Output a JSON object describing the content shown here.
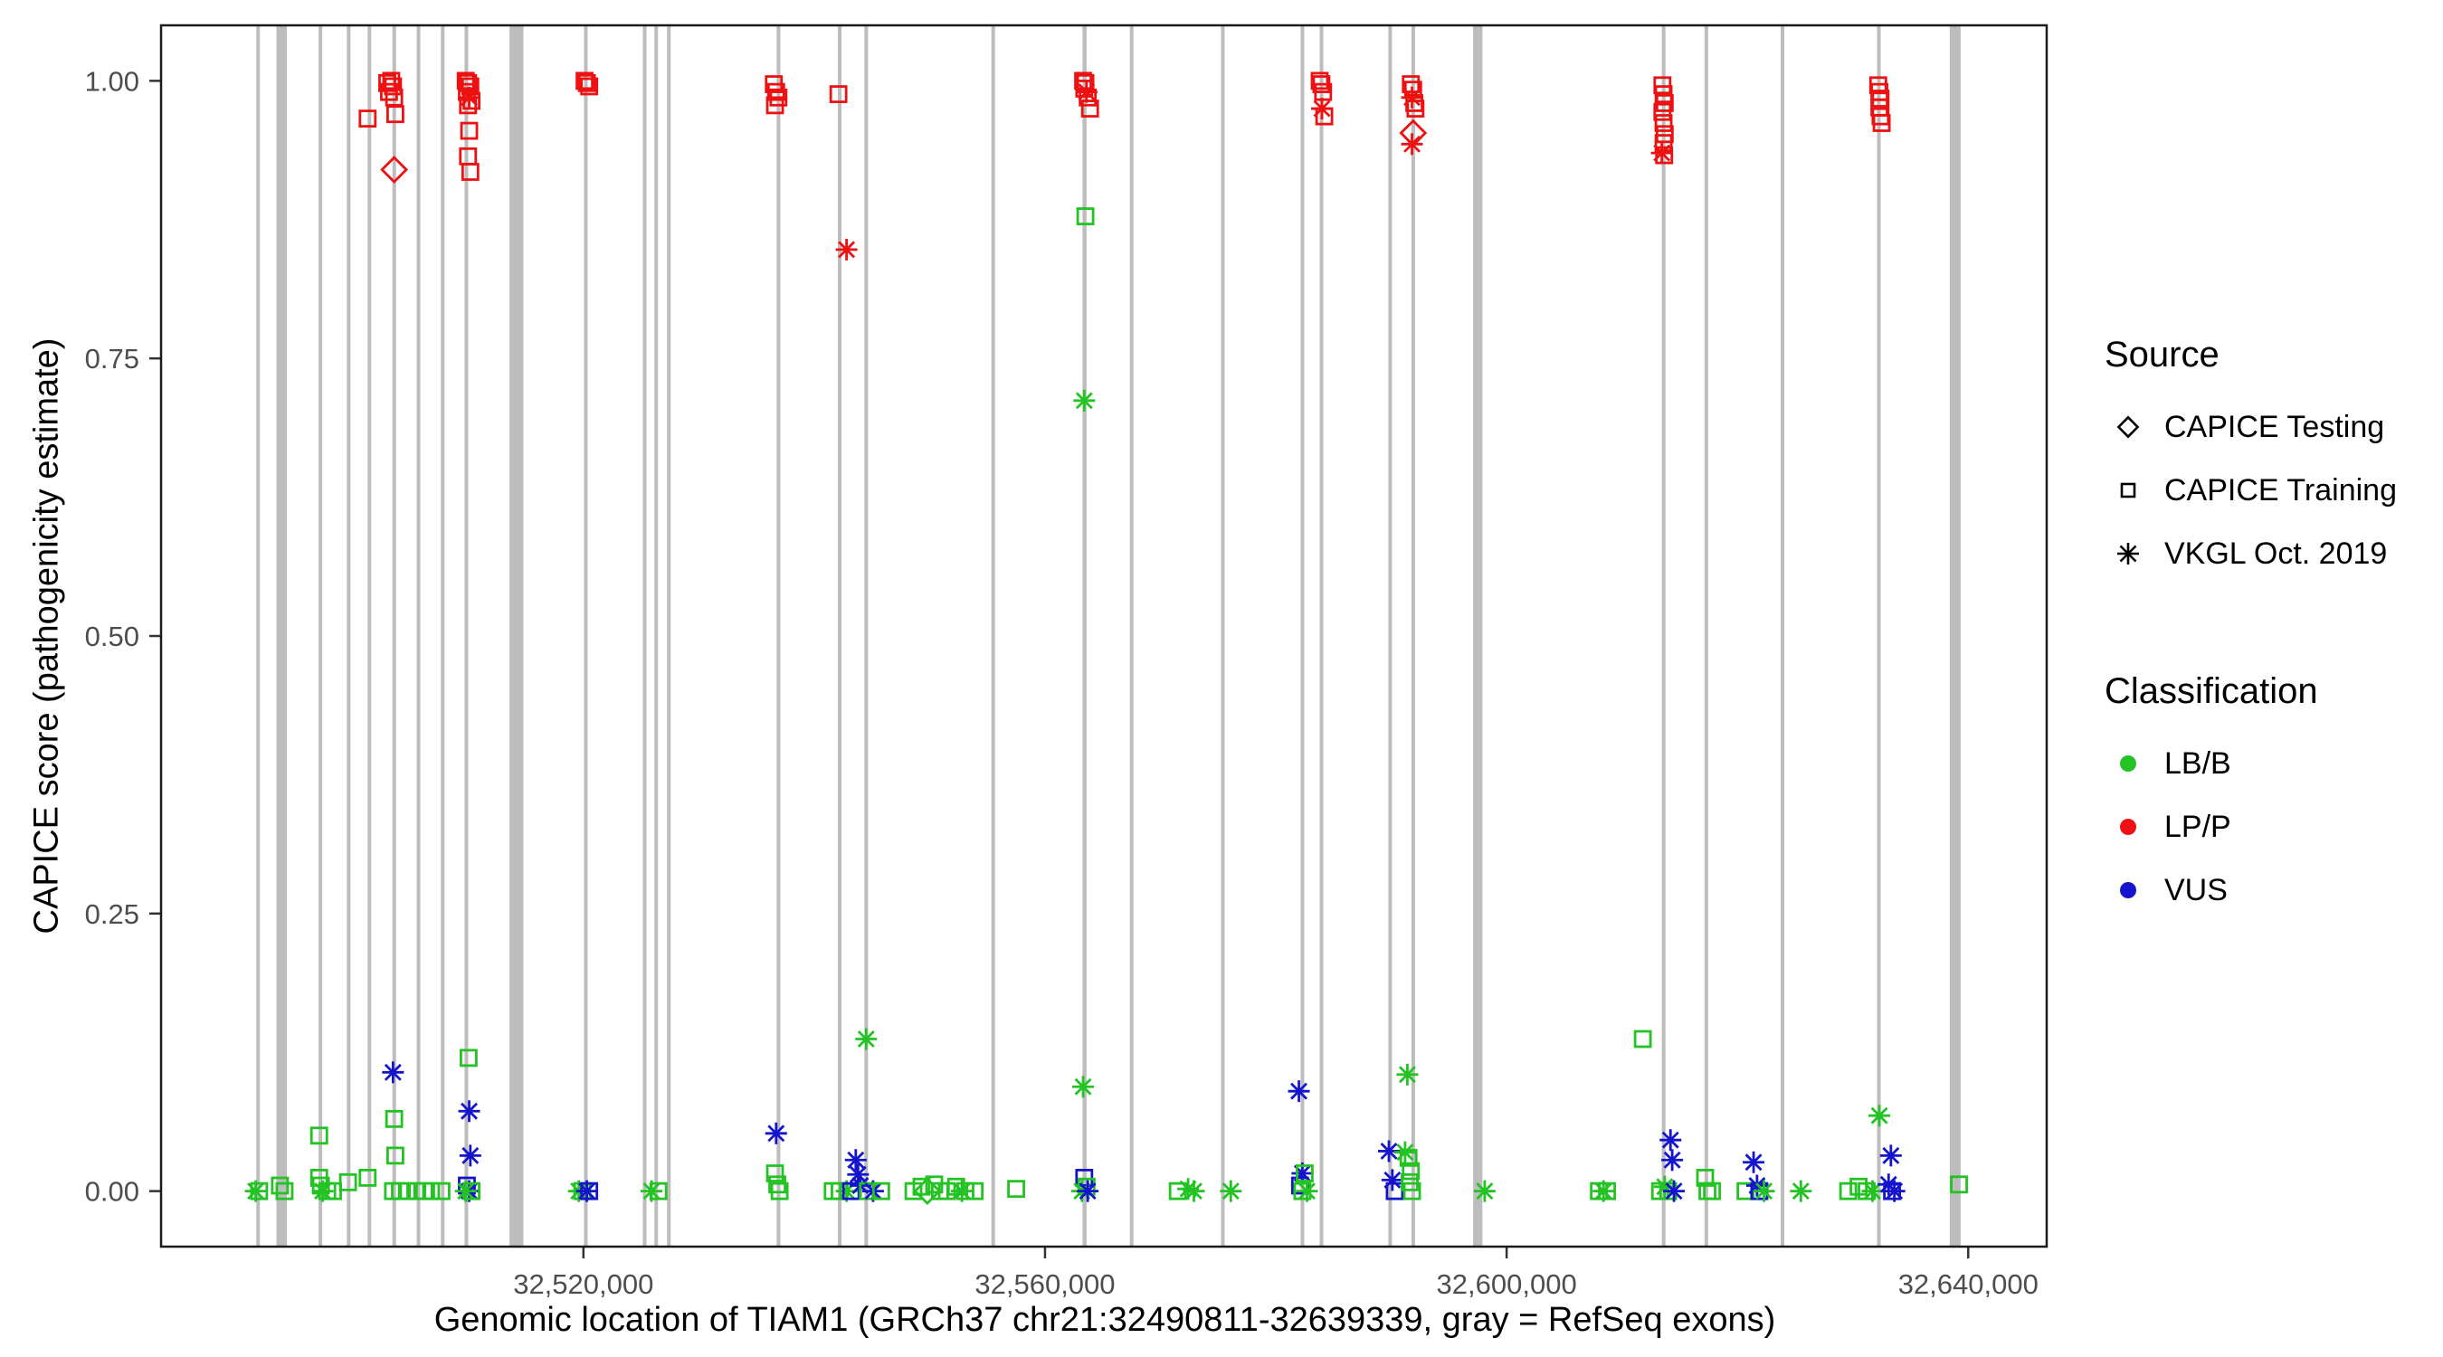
{
  "legend": {
    "source": {
      "title": "Source",
      "items": [
        {
          "label": "CAPICE Testing",
          "shape": "diamond"
        },
        {
          "label": "CAPICE Training",
          "shape": "square"
        },
        {
          "label": "VKGL Oct. 2019",
          "shape": "asterisk"
        }
      ]
    },
    "classification": {
      "title": "Classification",
      "items": [
        {
          "label": "LB/B",
          "color_key": "G"
        },
        {
          "label": "LP/P",
          "color_key": "R"
        },
        {
          "label": "VUS",
          "color_key": "B"
        }
      ]
    }
  },
  "chart_data": {
    "type": "scatter",
    "title": "",
    "xlabel": "Genomic location of TIAM1 (GRCh37 chr21:32490811-32639339, gray = RefSeq exons)",
    "ylabel": "CAPICE score (pathogenicity estimate)",
    "xlim": [
      32483400,
      32646800
    ],
    "ylim": [
      -0.05,
      1.05
    ],
    "x_ticks": [
      32520000,
      32560000,
      32600000,
      32640000
    ],
    "x_tick_labels": [
      "32,520,000",
      "32,560,000",
      "32,600,000",
      "32,640,000"
    ],
    "y_ticks": [
      0,
      0.25,
      0.5,
      0.75,
      1.0
    ],
    "y_tick_labels": [
      "0.00",
      "0.25",
      "0.50",
      "0.75",
      "1.00"
    ],
    "grid": false,
    "legend_position": "right",
    "colors": {
      "G": "#22C322",
      "R": "#EE1111",
      "B": "#1414CC",
      "exon": "#BDBDBD"
    },
    "encoding": {
      "point_format": [
        "x",
        "y",
        "source",
        "classification"
      ],
      "sources": {
        "tr": "CAPICE Training",
        "te": "CAPICE Testing",
        "vk": "VKGL Oct. 2019"
      },
      "classes": {
        "G": "LB/B",
        "R": "LP/P",
        "B": "VUS"
      }
    },
    "exons": [
      [
        32491650,
        32491950
      ],
      [
        32493400,
        32494300
      ],
      [
        32497050,
        32497350
      ],
      [
        32499500,
        32499800
      ],
      [
        32501300,
        32501600
      ],
      [
        32503450,
        32503750
      ],
      [
        32505550,
        32505850
      ],
      [
        32507650,
        32507950
      ],
      [
        32509700,
        32510000
      ],
      [
        32513600,
        32514800
      ],
      [
        32520050,
        32520350
      ],
      [
        32525150,
        32525450
      ],
      [
        32526150,
        32526450
      ],
      [
        32527250,
        32527550
      ],
      [
        32536750,
        32537050
      ],
      [
        32542050,
        32542350
      ],
      [
        32544350,
        32544650
      ],
      [
        32555350,
        32555650
      ],
      [
        32563250,
        32563600
      ],
      [
        32567350,
        32567650
      ],
      [
        32575250,
        32575550
      ],
      [
        32582150,
        32582450
      ],
      [
        32583800,
        32584100
      ],
      [
        32589750,
        32590050
      ],
      [
        32591750,
        32592050
      ],
      [
        32597100,
        32597900
      ],
      [
        32613450,
        32613750
      ],
      [
        32617150,
        32617450
      ],
      [
        32623750,
        32624050
      ],
      [
        32632100,
        32632400
      ],
      [
        32638400,
        32639340
      ]
    ],
    "points": [
      [
        32491600,
        0,
        "vk",
        "G"
      ],
      [
        32491900,
        0,
        "tr",
        "G"
      ],
      [
        32493700,
        0.005,
        "tr",
        "G"
      ],
      [
        32494100,
        0,
        "tr",
        "G"
      ],
      [
        32497100,
        0.05,
        "tr",
        "G"
      ],
      [
        32497100,
        0.012,
        "tr",
        "G"
      ],
      [
        32497250,
        0.005,
        "tr",
        "G"
      ],
      [
        32497400,
        0,
        "vk",
        "G"
      ],
      [
        32497800,
        0,
        "tr",
        "G"
      ],
      [
        32498300,
        0,
        "tr",
        "G"
      ],
      [
        32499600,
        0.008,
        "tr",
        "G"
      ],
      [
        32501300,
        0.966,
        "tr",
        "R"
      ],
      [
        32501300,
        0.012,
        "tr",
        "G"
      ],
      [
        32503000,
        0.998,
        "tr",
        "R"
      ],
      [
        32503150,
        0.99,
        "tr",
        "R"
      ],
      [
        32503350,
        1.0,
        "tr",
        "R"
      ],
      [
        32503500,
        0.995,
        "tr",
        "R"
      ],
      [
        32503600,
        0.985,
        "tr",
        "R"
      ],
      [
        32503700,
        0.97,
        "tr",
        "R"
      ],
      [
        32503600,
        0.92,
        "te",
        "R"
      ],
      [
        32503500,
        0.107,
        "vk",
        "B"
      ],
      [
        32503600,
        0.065,
        "tr",
        "G"
      ],
      [
        32503700,
        0.032,
        "tr",
        "G"
      ],
      [
        32503500,
        0,
        "tr",
        "G"
      ],
      [
        32504100,
        0,
        "tr",
        "G"
      ],
      [
        32504700,
        0,
        "tr",
        "G"
      ],
      [
        32505600,
        0,
        "tr",
        "G"
      ],
      [
        32506200,
        0,
        "tr",
        "G"
      ],
      [
        32506800,
        0,
        "tr",
        "G"
      ],
      [
        32507700,
        0,
        "tr",
        "G"
      ],
      [
        32509800,
        1.0,
        "tr",
        "R"
      ],
      [
        32510000,
        0.998,
        "tr",
        "R"
      ],
      [
        32510200,
        0.995,
        "tr",
        "R"
      ],
      [
        32509900,
        0.99,
        "tr",
        "R"
      ],
      [
        32510100,
        0.985,
        "vk",
        "R"
      ],
      [
        32510300,
        0.982,
        "tr",
        "R"
      ],
      [
        32510000,
        0.978,
        "tr",
        "R"
      ],
      [
        32510100,
        0.955,
        "tr",
        "R"
      ],
      [
        32510000,
        0.932,
        "tr",
        "R"
      ],
      [
        32510200,
        0.918,
        "tr",
        "R"
      ],
      [
        32510050,
        0.12,
        "tr",
        "G"
      ],
      [
        32510100,
        0.072,
        "vk",
        "B"
      ],
      [
        32510200,
        0.032,
        "vk",
        "B"
      ],
      [
        32509900,
        0.005,
        "tr",
        "B"
      ],
      [
        32510100,
        0,
        "vk",
        "B"
      ],
      [
        32510300,
        0,
        "tr",
        "G"
      ],
      [
        32509800,
        0,
        "vk",
        "G"
      ],
      [
        32520100,
        1.0,
        "tr",
        "R"
      ],
      [
        32520300,
        0.998,
        "tr",
        "R"
      ],
      [
        32520500,
        0.995,
        "tr",
        "R"
      ],
      [
        32519600,
        0,
        "vk",
        "G"
      ],
      [
        32519900,
        0,
        "tr",
        "G"
      ],
      [
        32520300,
        0,
        "vk",
        "B"
      ],
      [
        32520500,
        0,
        "tr",
        "B"
      ],
      [
        32525900,
        0,
        "vk",
        "G"
      ],
      [
        32526500,
        0,
        "tr",
        "G"
      ],
      [
        32536500,
        0.997,
        "tr",
        "R"
      ],
      [
        32536700,
        0.99,
        "tr",
        "R"
      ],
      [
        32536900,
        0.985,
        "tr",
        "R"
      ],
      [
        32536600,
        0.978,
        "tr",
        "R"
      ],
      [
        32536700,
        0.052,
        "vk",
        "B"
      ],
      [
        32536600,
        0.016,
        "tr",
        "G"
      ],
      [
        32536800,
        0.006,
        "tr",
        "G"
      ],
      [
        32537000,
        0,
        "tr",
        "G"
      ],
      [
        32542100,
        0.988,
        "tr",
        "R"
      ],
      [
        32542800,
        0.848,
        "vk",
        "R"
      ],
      [
        32541600,
        0,
        "tr",
        "G"
      ],
      [
        32542200,
        0,
        "tr",
        "G"
      ],
      [
        32542800,
        0,
        "vk",
        "G"
      ],
      [
        32543200,
        0,
        "tr",
        "B"
      ],
      [
        32543600,
        0.028,
        "vk",
        "B"
      ],
      [
        32543800,
        0.015,
        "vk",
        "B"
      ],
      [
        32544000,
        0.005,
        "vk",
        "B"
      ],
      [
        32544500,
        0.137,
        "vk",
        "G"
      ],
      [
        32544650,
        0,
        "tr",
        "G"
      ],
      [
        32545100,
        0,
        "vk",
        "B"
      ],
      [
        32545800,
        0,
        "tr",
        "G"
      ],
      [
        32548600,
        0,
        "tr",
        "G"
      ],
      [
        32549300,
        0.004,
        "tr",
        "G"
      ],
      [
        32549800,
        0,
        "te",
        "G"
      ],
      [
        32550400,
        0.006,
        "tr",
        "G"
      ],
      [
        32550900,
        0,
        "tr",
        "G"
      ],
      [
        32551500,
        0,
        "tr",
        "G"
      ],
      [
        32552300,
        0.004,
        "tr",
        "G"
      ],
      [
        32553100,
        0,
        "tr",
        "G"
      ],
      [
        32553900,
        0,
        "tr",
        "G"
      ],
      [
        32552800,
        0,
        "vk",
        "G"
      ],
      [
        32557500,
        0.002,
        "tr",
        "G"
      ],
      [
        32563300,
        1.0,
        "tr",
        "R"
      ],
      [
        32563500,
        0.998,
        "tr",
        "R"
      ],
      [
        32563400,
        0.993,
        "tr",
        "R"
      ],
      [
        32563600,
        0.99,
        "vk",
        "R"
      ],
      [
        32563700,
        0.985,
        "tr",
        "R"
      ],
      [
        32563900,
        0.975,
        "tr",
        "R"
      ],
      [
        32563500,
        0.878,
        "tr",
        "G"
      ],
      [
        32563400,
        0.712,
        "vk",
        "G"
      ],
      [
        32563300,
        0.094,
        "vk",
        "G"
      ],
      [
        32563400,
        0.012,
        "tr",
        "B"
      ],
      [
        32563600,
        0.004,
        "tr",
        "G"
      ],
      [
        32563200,
        0,
        "vk",
        "G"
      ],
      [
        32563700,
        0,
        "vk",
        "B"
      ],
      [
        32571500,
        0,
        "tr",
        "G"
      ],
      [
        32572400,
        0.002,
        "vk",
        "G"
      ],
      [
        32572900,
        0,
        "vk",
        "G"
      ],
      [
        32576100,
        0,
        "vk",
        "G"
      ],
      [
        32582000,
        0.09,
        "vk",
        "B"
      ],
      [
        32582300,
        0.016,
        "vk",
        "B"
      ],
      [
        32582100,
        0.005,
        "tr",
        "B"
      ],
      [
        32582500,
        0.016,
        "tr",
        "G"
      ],
      [
        32582300,
        0,
        "tr",
        "G"
      ],
      [
        32582700,
        0,
        "vk",
        "G"
      ],
      [
        32583800,
        1.0,
        "tr",
        "R"
      ],
      [
        32583950,
        0.997,
        "tr",
        "R"
      ],
      [
        32584100,
        0.99,
        "tr",
        "R"
      ],
      [
        32584000,
        0.975,
        "vk",
        "R"
      ],
      [
        32584200,
        0.968,
        "tr",
        "R"
      ],
      [
        32589800,
        0.036,
        "vk",
        "B"
      ],
      [
        32590100,
        0.01,
        "vk",
        "B"
      ],
      [
        32590300,
        0,
        "tr",
        "B"
      ],
      [
        32591700,
        0.997,
        "tr",
        "R"
      ],
      [
        32591900,
        0.992,
        "tr",
        "R"
      ],
      [
        32591800,
        0.985,
        "vk",
        "R"
      ],
      [
        32592000,
        0.98,
        "tr",
        "R"
      ],
      [
        32592100,
        0.975,
        "tr",
        "R"
      ],
      [
        32591900,
        0.953,
        "te",
        "R"
      ],
      [
        32591800,
        0.943,
        "vk",
        "R"
      ],
      [
        32591400,
        0.105,
        "vk",
        "G"
      ],
      [
        32591200,
        0.035,
        "vk",
        "G"
      ],
      [
        32591500,
        0.03,
        "tr",
        "G"
      ],
      [
        32591700,
        0.018,
        "tr",
        "G"
      ],
      [
        32591600,
        0.008,
        "tr",
        "G"
      ],
      [
        32591800,
        0,
        "tr",
        "G"
      ],
      [
        32598100,
        0,
        "vk",
        "G"
      ],
      [
        32608000,
        0,
        "tr",
        "G"
      ],
      [
        32608400,
        0,
        "vk",
        "G"
      ],
      [
        32608700,
        0,
        "tr",
        "G"
      ],
      [
        32611800,
        0.137,
        "tr",
        "G"
      ],
      [
        32613500,
        0.996,
        "tr",
        "R"
      ],
      [
        32613600,
        0.988,
        "tr",
        "R"
      ],
      [
        32613700,
        0.98,
        "tr",
        "R"
      ],
      [
        32613500,
        0.972,
        "tr",
        "R"
      ],
      [
        32613600,
        0.962,
        "tr",
        "R"
      ],
      [
        32613700,
        0.952,
        "tr",
        "R"
      ],
      [
        32613600,
        0.944,
        "tr",
        "R"
      ],
      [
        32613450,
        0.935,
        "vk",
        "R"
      ],
      [
        32613650,
        0.933,
        "tr",
        "R"
      ],
      [
        32614200,
        0.046,
        "vk",
        "B"
      ],
      [
        32614350,
        0.028,
        "vk",
        "B"
      ],
      [
        32613300,
        0,
        "tr",
        "G"
      ],
      [
        32613700,
        0.004,
        "vk",
        "G"
      ],
      [
        32614000,
        0,
        "tr",
        "G"
      ],
      [
        32614500,
        0,
        "vk",
        "B"
      ],
      [
        32617200,
        0.012,
        "tr",
        "G"
      ],
      [
        32617400,
        0,
        "tr",
        "G"
      ],
      [
        32617800,
        0,
        "tr",
        "G"
      ],
      [
        32620700,
        0,
        "tr",
        "G"
      ],
      [
        32621400,
        0.026,
        "vk",
        "B"
      ],
      [
        32621700,
        0.005,
        "vk",
        "B"
      ],
      [
        32621900,
        0,
        "tr",
        "B"
      ],
      [
        32622300,
        0,
        "vk",
        "G"
      ],
      [
        32625500,
        0,
        "vk",
        "G"
      ],
      [
        32629600,
        0,
        "tr",
        "G"
      ],
      [
        32630500,
        0.004,
        "tr",
        "G"
      ],
      [
        32631200,
        0,
        "tr",
        "G"
      ],
      [
        32631700,
        0,
        "vk",
        "G"
      ],
      [
        32632200,
        0.996,
        "tr",
        "R"
      ],
      [
        32632300,
        0.99,
        "tr",
        "R"
      ],
      [
        32632400,
        0.984,
        "tr",
        "R"
      ],
      [
        32632300,
        0.976,
        "tr",
        "R"
      ],
      [
        32632400,
        0.968,
        "tr",
        "R"
      ],
      [
        32632500,
        0.962,
        "tr",
        "R"
      ],
      [
        32632300,
        0.068,
        "vk",
        "G"
      ],
      [
        32633300,
        0.032,
        "vk",
        "B"
      ],
      [
        32633100,
        0.006,
        "vk",
        "B"
      ],
      [
        32633400,
        0,
        "tr",
        "B"
      ],
      [
        32633600,
        0,
        "vk",
        "B"
      ],
      [
        32639200,
        0.006,
        "tr",
        "G"
      ]
    ]
  }
}
